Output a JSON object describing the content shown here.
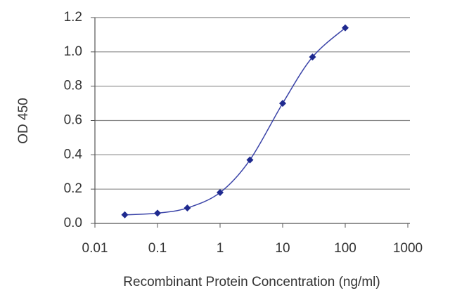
{
  "chart_data": {
    "type": "line",
    "x_label": "Recombinant Protein Concentration (ng/ml)",
    "y_label": "OD 450",
    "x": [
      0.03,
      0.1,
      0.3,
      1,
      3,
      10,
      30,
      100
    ],
    "values": [
      0.05,
      0.06,
      0.09,
      0.18,
      0.37,
      0.7,
      0.97,
      1.14
    ],
    "color": "#1f2a8f",
    "xscale": "log",
    "xlim": [
      0.01,
      1000
    ],
    "xticks": [
      0.01,
      0.1,
      1,
      10,
      100,
      1000
    ],
    "ylim": [
      0,
      1.2
    ],
    "yticks": [
      {
        "value": 0,
        "label": "0.0"
      },
      0.2,
      0.4,
      0.6,
      0.8,
      {
        "value": 1,
        "label": "1.0"
      },
      1.2
    ],
    "grid": true
  }
}
